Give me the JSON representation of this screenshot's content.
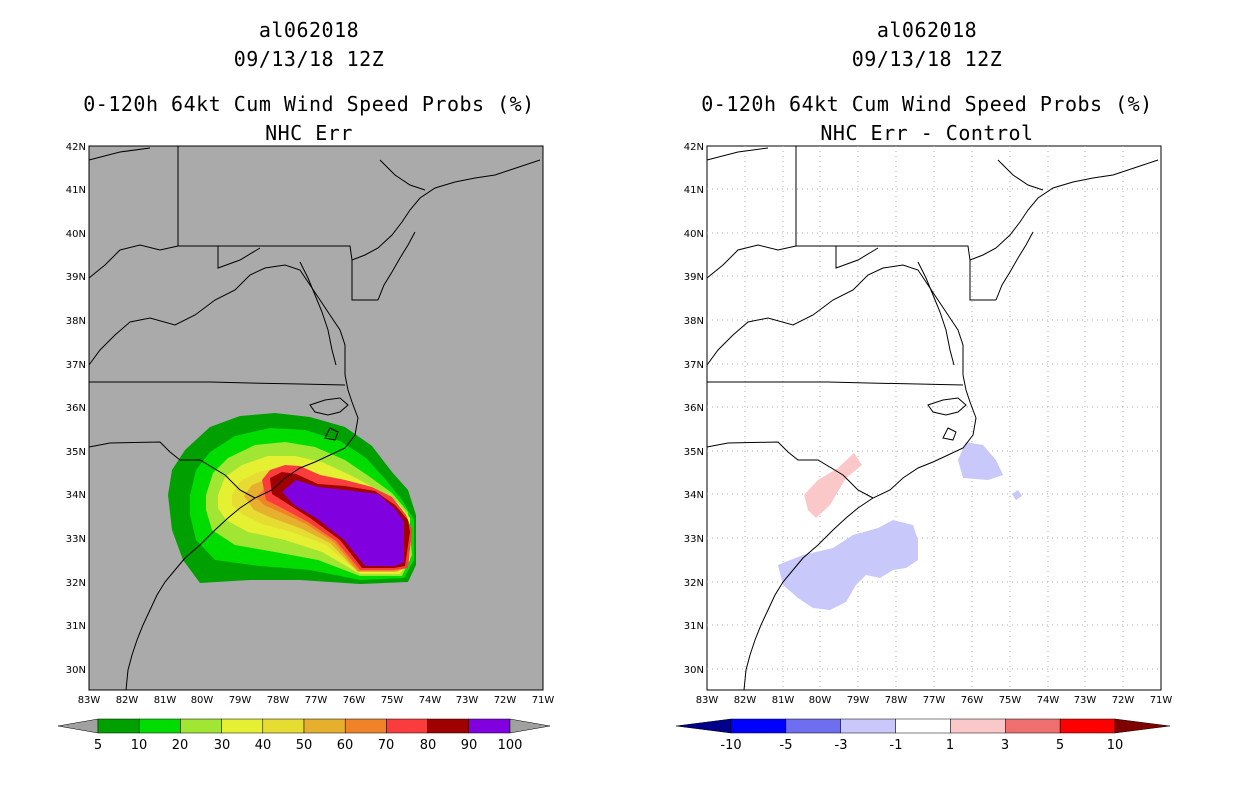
{
  "lat_labels": [
    "42N",
    "41N",
    "40N",
    "39N",
    "38N",
    "37N",
    "36N",
    "35N",
    "34N",
    "33N",
    "32N",
    "31N",
    "30N"
  ],
  "lon_labels": [
    "83W",
    "82W",
    "81W",
    "80W",
    "79W",
    "78W",
    "77W",
    "76W",
    "75W",
    "74W",
    "73W",
    "72W",
    "71W"
  ],
  "panels": [
    {
      "storm_id": "al062018",
      "datetime": "09/13/18 12Z",
      "title": "0-120h 64kt Cum Wind Speed Probs (%)",
      "subtitle": "NHC Err",
      "map_background": "#aaaaaa",
      "colorbar": {
        "labels": [
          "5",
          "10",
          "20",
          "30",
          "40",
          "50",
          "60",
          "70",
          "80",
          "90",
          "100"
        ],
        "colors": [
          "#00a000",
          "#00dc00",
          "#a0e632",
          "#e6f032",
          "#e6dc32",
          "#e6af2d",
          "#f08228",
          "#fa3c3c",
          "#a00000",
          "#8000e0"
        ],
        "end_left": "#a0a0a0",
        "end_right": "#a0a0a0"
      }
    },
    {
      "storm_id": "al062018",
      "datetime": "09/13/18 12Z",
      "title": "0-120h 64kt Cum Wind Speed Probs (%)",
      "subtitle": "NHC Err - Control",
      "map_background": "#ffffff",
      "colorbar": {
        "labels": [
          "-10",
          "-5",
          "-3",
          "-1",
          "1",
          "3",
          "5",
          "10"
        ],
        "colors": [
          "#0000ff",
          "#6e6ef0",
          "#c8c8fa",
          "#ffffff",
          "#fac8c8",
          "#f07070",
          "#ff0000"
        ],
        "end_left": "#00008b",
        "end_right": "#800000"
      }
    }
  ]
}
